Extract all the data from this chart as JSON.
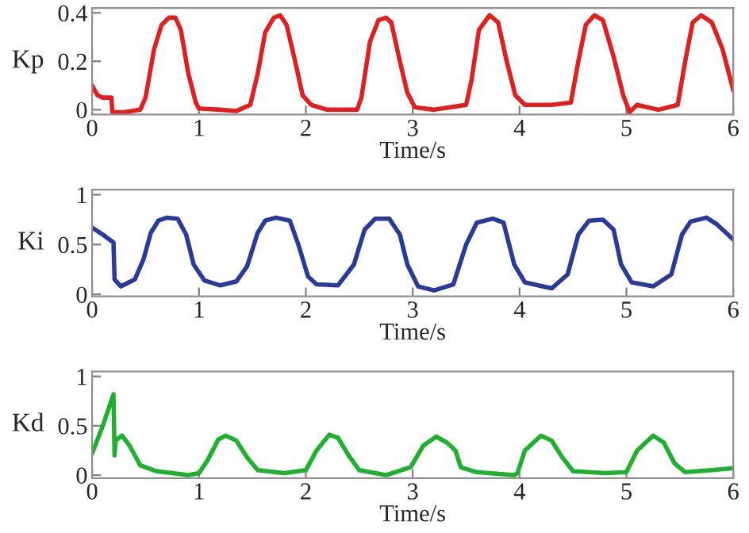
{
  "chart_data": [
    {
      "type": "line",
      "xlabel": "Time/s",
      "ylabel": "Kp",
      "xlim": [
        0,
        6
      ],
      "xticks": [
        0,
        1,
        2,
        3,
        4,
        5,
        6
      ],
      "ylim": [
        -0.02,
        0.42
      ],
      "yticks": [
        0,
        0.2,
        0.4
      ],
      "grid": false,
      "legend": false,
      "series": [
        {
          "color": "#e02020",
          "x": [
            0,
            0.05,
            0.1,
            0.18,
            0.19,
            0.3,
            0.45,
            0.5,
            0.58,
            0.65,
            0.72,
            0.78,
            0.83,
            0.9,
            0.97,
            1.0,
            1.2,
            1.35,
            1.48,
            1.55,
            1.62,
            1.7,
            1.76,
            1.82,
            1.9,
            1.97,
            2.05,
            2.2,
            2.48,
            2.52,
            2.6,
            2.68,
            2.75,
            2.8,
            2.88,
            2.95,
            3.02,
            3.2,
            3.5,
            3.55,
            3.62,
            3.72,
            3.8,
            3.88,
            3.96,
            4.05,
            4.3,
            4.48,
            4.55,
            4.62,
            4.7,
            4.78,
            4.88,
            4.97,
            5.03,
            5.1,
            5.3,
            5.48,
            5.55,
            5.62,
            5.7,
            5.8,
            5.9,
            6.0
          ],
          "values": [
            0.1,
            0.06,
            0.05,
            0.05,
            -0.01,
            -0.01,
            0.0,
            0.05,
            0.25,
            0.35,
            0.38,
            0.38,
            0.33,
            0.15,
            0.03,
            0.005,
            0.0,
            -0.005,
            0.02,
            0.15,
            0.32,
            0.38,
            0.39,
            0.35,
            0.2,
            0.06,
            0.02,
            0.0,
            0.0,
            0.05,
            0.28,
            0.37,
            0.38,
            0.36,
            0.2,
            0.07,
            0.01,
            0.0,
            0.02,
            0.12,
            0.33,
            0.39,
            0.36,
            0.2,
            0.06,
            0.02,
            0.02,
            0.03,
            0.2,
            0.35,
            0.39,
            0.37,
            0.22,
            0.06,
            -0.01,
            0.02,
            0.0,
            0.02,
            0.2,
            0.36,
            0.39,
            0.36,
            0.25,
            0.08
          ]
        }
      ]
    },
    {
      "type": "line",
      "xlabel": "Time/s",
      "ylabel": "Ki",
      "xlim": [
        0,
        6
      ],
      "xticks": [
        0,
        1,
        2,
        3,
        4,
        5,
        6
      ],
      "ylim": [
        -0.02,
        1.05
      ],
      "yticks": [
        0,
        0.5,
        1
      ],
      "grid": false,
      "legend": false,
      "series": [
        {
          "color": "#2a3a9a",
          "x": [
            0,
            0.1,
            0.2,
            0.21,
            0.27,
            0.4,
            0.48,
            0.55,
            0.62,
            0.7,
            0.8,
            0.88,
            0.95,
            1.05,
            1.2,
            1.35,
            1.45,
            1.55,
            1.62,
            1.72,
            1.85,
            1.93,
            2.02,
            2.1,
            2.3,
            2.45,
            2.55,
            2.65,
            2.78,
            2.88,
            2.95,
            3.05,
            3.2,
            3.38,
            3.5,
            3.6,
            3.75,
            3.85,
            3.95,
            4.05,
            4.3,
            4.45,
            4.55,
            4.65,
            4.78,
            4.88,
            4.95,
            5.05,
            5.25,
            5.42,
            5.52,
            5.6,
            5.75,
            5.85,
            5.95,
            6.0
          ],
          "values": [
            0.67,
            0.6,
            0.52,
            0.15,
            0.08,
            0.15,
            0.35,
            0.62,
            0.74,
            0.77,
            0.76,
            0.6,
            0.3,
            0.14,
            0.09,
            0.13,
            0.28,
            0.62,
            0.74,
            0.77,
            0.74,
            0.5,
            0.18,
            0.1,
            0.09,
            0.3,
            0.65,
            0.76,
            0.76,
            0.6,
            0.3,
            0.08,
            0.04,
            0.1,
            0.5,
            0.72,
            0.76,
            0.72,
            0.3,
            0.12,
            0.06,
            0.2,
            0.6,
            0.74,
            0.75,
            0.65,
            0.3,
            0.12,
            0.08,
            0.2,
            0.6,
            0.73,
            0.77,
            0.7,
            0.6,
            0.55
          ]
        }
      ]
    },
    {
      "type": "line",
      "xlabel": "Time/s",
      "ylabel": "Kd",
      "xlim": [
        0,
        6
      ],
      "xticks": [
        0,
        1,
        2,
        3,
        4,
        5,
        6
      ],
      "ylim": [
        -0.03,
        1.05
      ],
      "yticks": [
        0,
        0.5,
        1
      ],
      "grid": false,
      "legend": false,
      "series": [
        {
          "color": "#20b030",
          "x": [
            0,
            0.1,
            0.2,
            0.21,
            0.22,
            0.28,
            0.35,
            0.45,
            0.6,
            0.9,
            1.0,
            1.08,
            1.18,
            1.25,
            1.35,
            1.45,
            1.55,
            1.8,
            2.0,
            2.1,
            2.22,
            2.3,
            2.4,
            2.5,
            2.75,
            2.98,
            3.1,
            3.22,
            3.32,
            3.4,
            3.45,
            3.6,
            3.95,
            3.98,
            4.05,
            4.2,
            4.3,
            4.4,
            4.5,
            4.8,
            5.0,
            5.1,
            5.25,
            5.35,
            5.45,
            5.55,
            5.8,
            6.0
          ],
          "values": [
            0.22,
            0.5,
            0.82,
            0.2,
            0.35,
            0.4,
            0.3,
            0.1,
            0.04,
            0.0,
            0.02,
            0.15,
            0.36,
            0.4,
            0.35,
            0.18,
            0.05,
            0.02,
            0.05,
            0.25,
            0.41,
            0.38,
            0.2,
            0.05,
            0.0,
            0.08,
            0.3,
            0.39,
            0.33,
            0.25,
            0.08,
            0.03,
            0.0,
            0.02,
            0.25,
            0.4,
            0.35,
            0.18,
            0.04,
            0.02,
            0.03,
            0.25,
            0.4,
            0.33,
            0.12,
            0.03,
            0.05,
            0.07
          ]
        }
      ]
    }
  ]
}
